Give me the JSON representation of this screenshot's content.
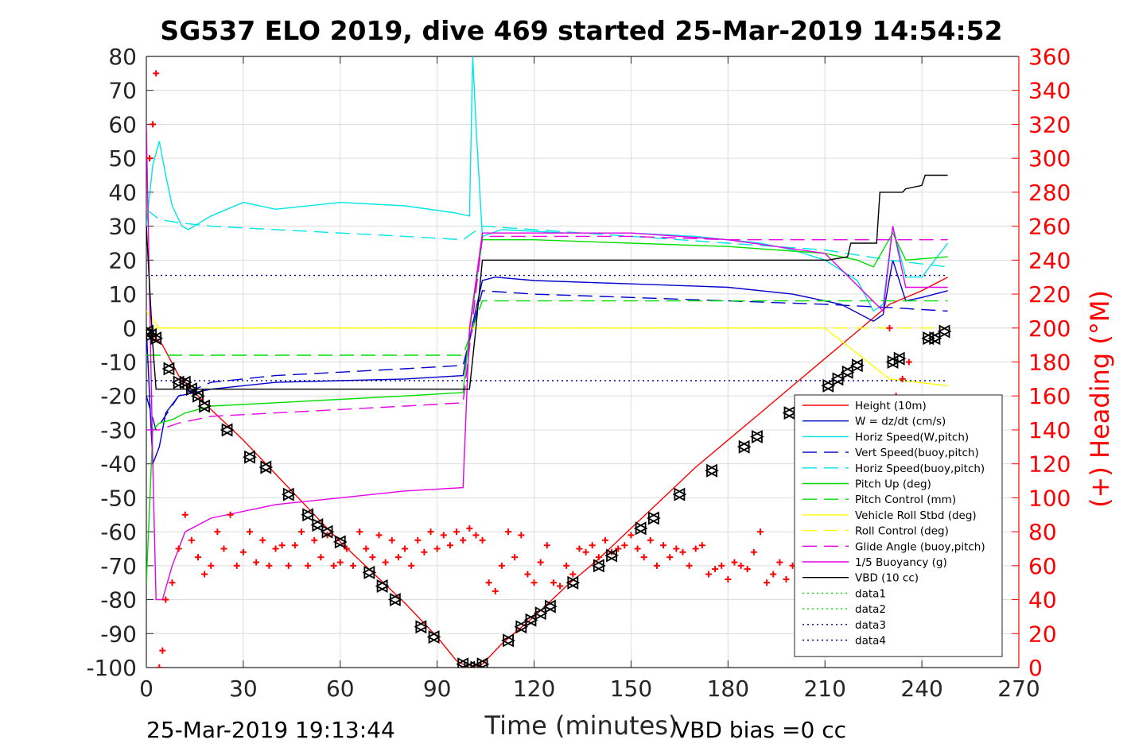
{
  "chart_data": {
    "type": "line",
    "title": "SG537 ELO 2019, dive 469 started 25-Mar-2019 14:54:52",
    "xlabel": "Time (minutes)",
    "ylabel": "",
    "ylabel_right": "(+) Heading (°M)",
    "xlim": [
      0,
      270
    ],
    "ylim": [
      -100,
      80
    ],
    "ylim_right": [
      0,
      360
    ],
    "x_ticks": [
      "0",
      "30",
      "60",
      "90",
      "120",
      "150",
      "180",
      "210",
      "240",
      "270"
    ],
    "y_ticks": [
      "80",
      "70",
      "60",
      "50",
      "40",
      "30",
      "20",
      "10",
      "0",
      "-10",
      "-20",
      "-30",
      "-40",
      "-50",
      "-60",
      "-70",
      "-80",
      "-90",
      "-100"
    ],
    "y_ticks_right": [
      "360",
      "340",
      "320",
      "300",
      "280",
      "260",
      "240",
      "220",
      "200",
      "180",
      "160",
      "140",
      "120",
      "100",
      "80",
      "60",
      "40",
      "20",
      "0"
    ],
    "grid": true,
    "legend_position": "bottom-right",
    "annotations": {
      "bottom_left": "25-Mar-2019 19:13:44",
      "bottom_right": "VBD bias =0 cc"
    },
    "series": [
      {
        "name": "Height (10m)",
        "color": "#ff0000",
        "style": "solid",
        "x": [
          0,
          2,
          5,
          10,
          20,
          30,
          40,
          50,
          60,
          70,
          80,
          90,
          96,
          100,
          104,
          110,
          120,
          130,
          140,
          150,
          160,
          170,
          180,
          190,
          200,
          210,
          220,
          230,
          240,
          248
        ],
        "y": [
          -2,
          -2,
          -5,
          -14,
          -24,
          -33,
          -43,
          -53,
          -63,
          -72,
          -81,
          -91,
          -98,
          -100,
          -99,
          -93,
          -85,
          -76,
          -68,
          -59,
          -50,
          -41,
          -33,
          -25,
          -17,
          -9,
          -1,
          7,
          11,
          15
        ]
      },
      {
        "name": "W = dz/dt (cm/s)",
        "color": "#0000cc",
        "style": "solid",
        "x": [
          0,
          2,
          4,
          6,
          10,
          20,
          40,
          60,
          80,
          98,
          100,
          104,
          108,
          120,
          150,
          180,
          200,
          215,
          225,
          228,
          231,
          235,
          240,
          248
        ],
        "y": [
          0,
          -40,
          -35,
          -25,
          -20,
          -18,
          -16,
          -15.5,
          -15,
          -14,
          -3,
          14,
          15,
          14,
          13,
          12,
          10,
          7,
          2,
          4,
          20,
          8,
          9,
          11
        ]
      },
      {
        "name": "Horiz Speed(W,pitch)",
        "color": "#00e5e5",
        "style": "solid",
        "x": [
          0,
          2,
          4,
          6,
          8,
          11,
          13,
          20,
          30,
          40,
          60,
          80,
          95,
          100,
          101,
          102,
          104,
          110,
          130,
          150,
          170,
          190,
          200,
          210,
          220,
          225,
          228,
          231,
          235,
          240,
          248
        ],
        "y": [
          30,
          48,
          55,
          45,
          36,
          30,
          29,
          33,
          37,
          35,
          37,
          36,
          34,
          33,
          80,
          60,
          27,
          29,
          28,
          28,
          27,
          25,
          23,
          20,
          14,
          5,
          7,
          30,
          15,
          15,
          25
        ]
      },
      {
        "name": "Vert Speed(buoy,pitch)",
        "color": "#0000cc",
        "style": "dashed",
        "x": [
          0,
          3,
          10,
          20,
          40,
          60,
          80,
          98,
          104,
          120,
          150,
          180,
          210,
          230,
          248
        ],
        "y": [
          -20,
          -30,
          -20,
          -16,
          -14,
          -13,
          -12,
          -11,
          11,
          10,
          9,
          8,
          7,
          6,
          5
        ]
      },
      {
        "name": "Horiz Speed(buoy,pitch)",
        "color": "#00e5e5",
        "style": "dashed",
        "x": [
          0,
          4,
          10,
          20,
          40,
          60,
          80,
          98,
          104,
          120,
          150,
          180,
          210,
          230,
          248
        ],
        "y": [
          35,
          32,
          31,
          30,
          29,
          28,
          27,
          26,
          30,
          29,
          27,
          25,
          23,
          20,
          18
        ]
      },
      {
        "name": "Pitch Up (deg)",
        "color": "#00dd00",
        "style": "solid",
        "x": [
          0,
          2,
          4,
          8,
          12,
          20,
          40,
          60,
          80,
          98,
          100,
          104,
          120,
          150,
          180,
          210,
          220,
          225,
          231,
          235,
          248
        ],
        "y": [
          -75,
          -30,
          -28,
          -27,
          -25,
          -23,
          -22,
          -21,
          -20,
          -19,
          -1,
          26,
          26,
          25,
          24,
          22,
          20,
          18,
          28,
          20,
          21
        ]
      },
      {
        "name": "Pitch Control (mm)",
        "color": "#00dd00",
        "style": "dashed",
        "x": [
          0,
          4,
          10,
          20,
          40,
          60,
          80,
          98,
          104,
          120,
          150,
          180,
          210,
          230,
          248
        ],
        "y": [
          -8,
          -8,
          -8,
          -8,
          -8,
          -8,
          -8,
          -8,
          8,
          8,
          8,
          8,
          8,
          8,
          8
        ]
      },
      {
        "name": "Vehicle Roll Stbd (deg)",
        "color": "#ffff00",
        "style": "solid",
        "x": [
          0,
          4,
          10,
          20,
          40,
          60,
          80,
          98,
          102,
          120,
          150,
          180,
          210,
          230,
          248
        ],
        "y": [
          5,
          0,
          0,
          0,
          0,
          0,
          0,
          0,
          0,
          0,
          0,
          0,
          0,
          -15,
          -17
        ]
      },
      {
        "name": "Roll Control (deg)",
        "color": "#ffff00",
        "style": "dashed",
        "x": [
          0,
          4,
          10,
          40,
          98,
          102,
          150,
          210,
          248
        ],
        "y": [
          0,
          0,
          0,
          0,
          0,
          0,
          0,
          0,
          0
        ]
      },
      {
        "name": "Glide Angle (buoy,pitch)",
        "color": "#e500e5",
        "style": "dashed",
        "x": [
          0,
          4,
          10,
          20,
          40,
          60,
          80,
          98,
          104,
          120,
          150,
          180,
          210,
          230,
          248
        ],
        "y": [
          -30,
          -30,
          -28,
          -26,
          -25,
          -24,
          -23,
          -22,
          27,
          27,
          27,
          26,
          26,
          26,
          26
        ]
      },
      {
        "name": "1/5 Buoyancy (g)",
        "color": "#e500e5",
        "style": "solid",
        "x": [
          0,
          2,
          3,
          5,
          8,
          12,
          20,
          40,
          60,
          80,
          98,
          100,
          104,
          120,
          150,
          180,
          210,
          228,
          231,
          235,
          248
        ],
        "y": [
          60,
          -40,
          -80,
          -80,
          -70,
          -60,
          -56,
          -52,
          -50,
          -48,
          -47,
          0,
          28,
          28,
          28,
          26,
          22,
          5,
          30,
          12,
          12
        ]
      },
      {
        "name": "VBD (10 cc)",
        "color": "#000000",
        "style": "solid",
        "x": [
          0,
          2,
          3,
          10,
          40,
          80,
          98,
          100,
          102,
          104,
          150,
          200,
          210,
          211,
          217,
          218,
          226,
          227,
          234,
          235,
          240,
          241,
          248
        ],
        "y": [
          30,
          -5,
          -18,
          -18,
          -18,
          -18,
          -18,
          -18,
          0,
          20,
          20,
          20,
          20,
          20,
          21,
          25,
          25,
          40,
          40,
          41,
          42,
          45,
          45
        ]
      },
      {
        "name": "data1",
        "color": "#00dd00",
        "style": "dotted",
        "x": [],
        "y": []
      },
      {
        "name": "data2",
        "color": "#00dd00",
        "style": "dotted",
        "x": [],
        "y": []
      },
      {
        "name": "data3",
        "color": "#000088",
        "style": "dotted",
        "x": [
          0,
          248
        ],
        "y": [
          15.5,
          15.5
        ]
      },
      {
        "name": "data4",
        "color": "#000088",
        "style": "dotted",
        "x": [
          0,
          248
        ],
        "y": [
          -15.5,
          -15.5
        ]
      }
    ],
    "heading": {
      "axis": "right",
      "color": "#ff0000",
      "marker": "+",
      "x": [
        1,
        2,
        3,
        4,
        5,
        6,
        8,
        10,
        12,
        14,
        16,
        18,
        20,
        22,
        24,
        26,
        28,
        30,
        32,
        34,
        36,
        38,
        40,
        42,
        44,
        46,
        48,
        50,
        52,
        54,
        56,
        58,
        60,
        62,
        64,
        66,
        68,
        70,
        72,
        74,
        76,
        78,
        80,
        82,
        84,
        86,
        88,
        90,
        92,
        94,
        96,
        98,
        100,
        102,
        104,
        106,
        108,
        110,
        112,
        114,
        116,
        118,
        120,
        122,
        124,
        126,
        128,
        130,
        132,
        134,
        136,
        138,
        140,
        142,
        144,
        146,
        148,
        150,
        152,
        154,
        156,
        158,
        160,
        162,
        164,
        166,
        168,
        170,
        172,
        174,
        176,
        178,
        180,
        182,
        184,
        186,
        188,
        190,
        192,
        194,
        196,
        198,
        200,
        202,
        204,
        206,
        208,
        210,
        212,
        214,
        216,
        218,
        220,
        222,
        224,
        226,
        228,
        230,
        232,
        234,
        236
      ],
      "y": [
        300,
        320,
        350,
        0,
        10,
        40,
        50,
        70,
        90,
        75,
        65,
        55,
        60,
        80,
        70,
        90,
        60,
        68,
        80,
        62,
        75,
        60,
        70,
        72,
        60,
        72,
        80,
        60,
        75,
        65,
        78,
        60,
        62,
        70,
        60,
        80,
        70,
        65,
        78,
        62,
        75,
        65,
        70,
        60,
        75,
        68,
        80,
        70,
        78,
        72,
        80,
        75,
        82,
        78,
        75,
        50,
        45,
        60,
        80,
        65,
        78,
        55,
        50,
        62,
        72,
        50,
        48,
        60,
        55,
        70,
        68,
        72,
        65,
        75,
        68,
        70,
        72,
        78,
        70,
        65,
        75,
        60,
        72,
        65,
        70,
        68,
        60,
        70,
        72,
        55,
        58,
        60,
        52,
        62,
        60,
        58,
        68,
        80,
        50,
        55,
        62,
        52,
        60,
        60,
        70,
        40,
        45,
        50,
        55,
        65,
        60,
        50,
        40,
        50,
        60,
        70,
        150,
        200,
        160,
        170,
        180
      ]
    },
    "depth_markers": {
      "series": "Height (10m)",
      "marker": "triangle",
      "color": "#000000",
      "x": [
        0.5,
        1.5,
        3,
        7,
        10,
        12,
        14,
        16,
        18,
        25,
        32,
        37,
        44,
        50,
        53,
        56,
        60,
        69,
        73,
        77,
        85,
        89,
        98,
        100,
        102,
        104,
        112,
        116,
        119,
        122,
        125,
        132,
        140,
        144,
        153,
        157,
        165,
        175,
        185,
        189,
        199,
        211,
        214,
        217,
        220,
        231,
        233,
        242,
        244,
        247
      ],
      "y": [
        -1,
        -2,
        -3,
        -12,
        -16,
        -16,
        -18,
        -20,
        -23,
        -30,
        -38,
        -41,
        -49,
        -55,
        -58,
        -60,
        -63,
        -72,
        -76,
        -80,
        -88,
        -91,
        -99,
        -100,
        -100,
        -99,
        -92,
        -88,
        -86,
        -84,
        -82,
        -75,
        -70,
        -67,
        -59,
        -56,
        -49,
        -42,
        -35,
        -32,
        -25,
        -17,
        -15,
        -13,
        -11,
        -10,
        -9,
        -3,
        -3,
        -1
      ]
    }
  }
}
